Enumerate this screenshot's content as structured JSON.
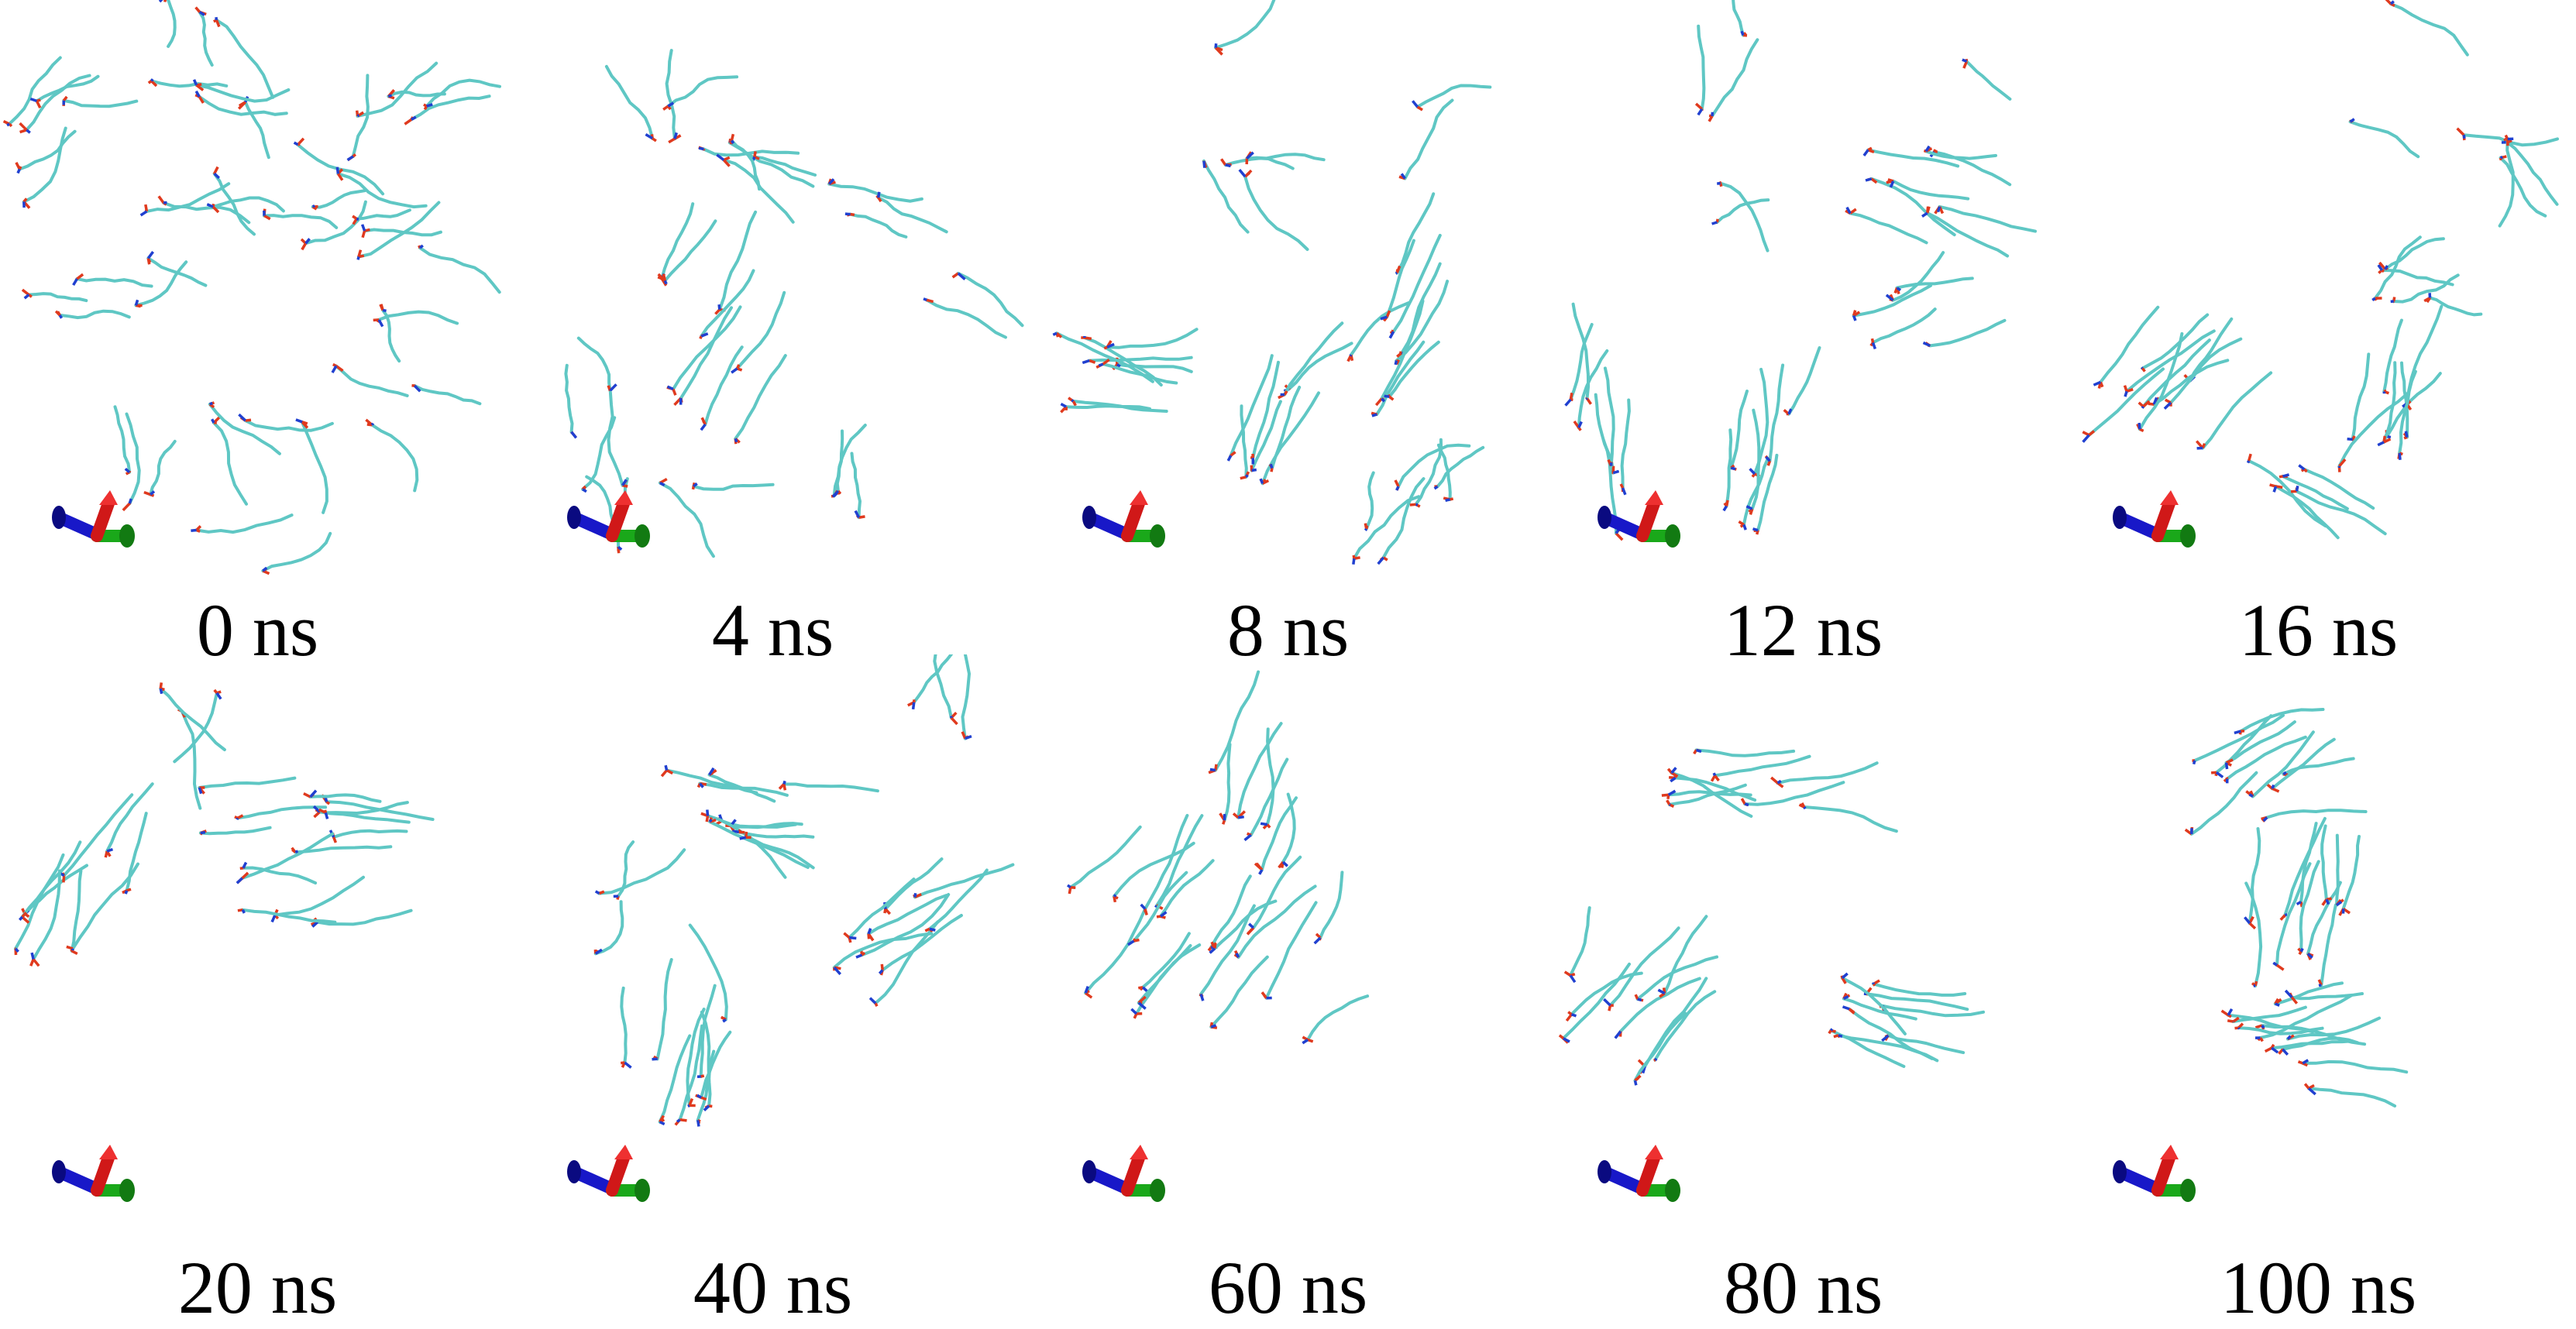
{
  "figure": {
    "description_free": true,
    "panels": [
      {
        "label": "0 ns",
        "stage": "dispersed"
      },
      {
        "label": "4 ns",
        "stage": "early-aggregation"
      },
      {
        "label": "8 ns",
        "stage": "clusters"
      },
      {
        "label": "12 ns",
        "stage": "clusters"
      },
      {
        "label": "16 ns",
        "stage": "clusters"
      },
      {
        "label": "20 ns",
        "stage": "two-clusters"
      },
      {
        "label": "40 ns",
        "stage": "three-clusters"
      },
      {
        "label": "60 ns",
        "stage": "three-clusters"
      },
      {
        "label": "80 ns",
        "stage": "three-clusters"
      },
      {
        "label": "100 ns",
        "stage": "three-stacked-clusters"
      }
    ],
    "colors": {
      "chain": "#5fc7c4",
      "oxygen": "#e03a1e",
      "nitrogen": "#2040d0",
      "axis_x": "#1818c8",
      "axis_y": "#1aa81a",
      "axis_z": "#d01818"
    }
  }
}
